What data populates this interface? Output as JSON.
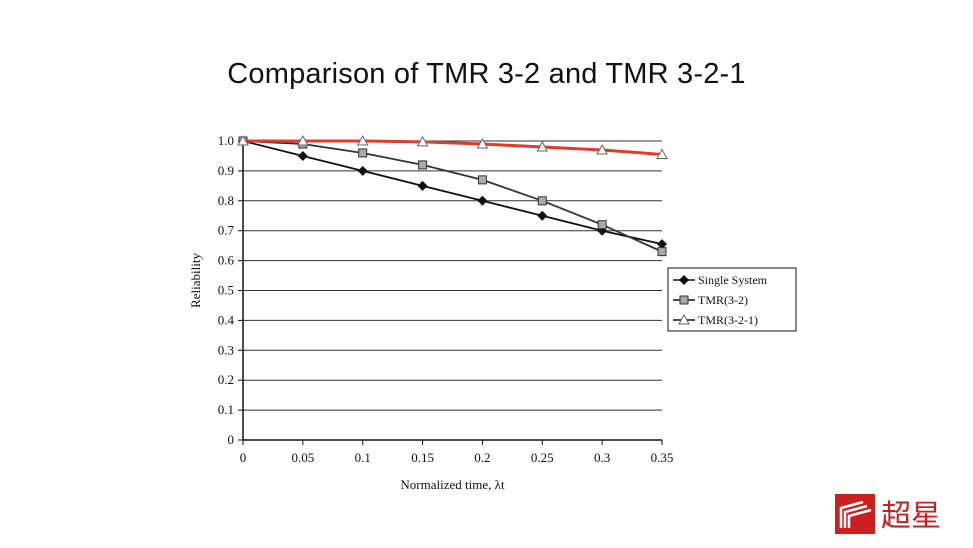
{
  "title": "Comparison of TMR 3-2 and TMR 3-2-1",
  "chart_data": {
    "type": "line",
    "title": "Comparison of TMR 3-2 and TMR 3-2-1",
    "xlabel": "Normalized time, λt",
    "ylabel": "Reliability",
    "x": [
      0,
      0.05,
      0.1,
      0.15,
      0.2,
      0.25,
      0.3,
      0.35
    ],
    "x_tick_labels": [
      "0",
      "0.05",
      "0.1",
      "0.15",
      "0.2",
      "0.25",
      "0.3",
      "0.35"
    ],
    "y_tick_labels": [
      "0",
      "0.1",
      "0.2",
      "0.3",
      "0.4",
      "0.5",
      "0.6",
      "0.7",
      "0.8",
      "0.9",
      "1.0"
    ],
    "xlim": [
      0,
      0.35
    ],
    "ylim": [
      0,
      1.0
    ],
    "grid": "horizontal",
    "legend_position": "right",
    "series": [
      {
        "name": "Single System",
        "marker": "diamond",
        "color": "#111111",
        "values": [
          1.0,
          0.95,
          0.9,
          0.85,
          0.8,
          0.75,
          0.7,
          0.655
        ]
      },
      {
        "name": "TMR(3-2)",
        "marker": "square",
        "color": "#333333",
        "values": [
          1.0,
          0.99,
          0.96,
          0.92,
          0.87,
          0.8,
          0.72,
          0.63
        ]
      },
      {
        "name": "TMR(3-2-1)",
        "marker": "triangle",
        "color": "#e53a2a",
        "values": [
          1.0,
          1.0,
          1.0,
          0.997,
          0.99,
          0.98,
          0.97,
          0.955
        ]
      }
    ]
  },
  "logo": {
    "text": "超星",
    "color": "#cc1f1f"
  }
}
